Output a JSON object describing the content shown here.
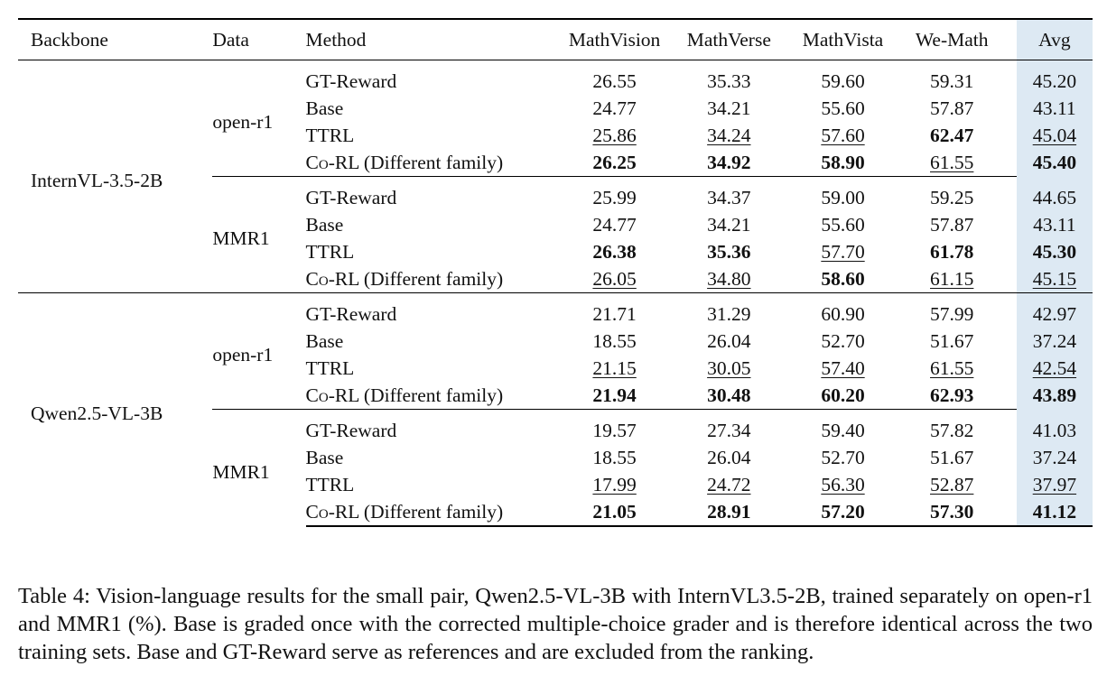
{
  "columns": {
    "backbone": "Backbone",
    "data": "Data",
    "method": "Method",
    "mathvision": "MathVision",
    "mathverse": "MathVerse",
    "mathvista": "MathVista",
    "wemath": "We-Math",
    "avg": "Avg"
  },
  "backbones": [
    {
      "name": "InternVL-3.5-2B",
      "groups": [
        {
          "data": "open-r1",
          "rows": [
            {
              "method": "GT-Reward",
              "vals": [
                "26.55",
                "35.33",
                "59.60",
                "59.31",
                "45.20"
              ],
              "style": [
                "",
                "",
                "",
                "",
                ""
              ]
            },
            {
              "method": "Base",
              "vals": [
                "24.77",
                "34.21",
                "55.60",
                "57.87",
                "43.11"
              ],
              "style": [
                "",
                "",
                "",
                "",
                ""
              ]
            },
            {
              "method": "TTRL",
              "vals": [
                "25.86",
                "34.24",
                "57.60",
                "62.47",
                "45.04"
              ],
              "style": [
                "u",
                "u",
                "u",
                "b",
                "u"
              ]
            },
            {
              "method": "Co-RL (Different family)",
              "vals": [
                "26.25",
                "34.92",
                "58.90",
                "61.55",
                "45.40"
              ],
              "style": [
                "b",
                "b",
                "b",
                "u",
                "b"
              ]
            }
          ]
        },
        {
          "data": "MMR1",
          "rows": [
            {
              "method": "GT-Reward",
              "vals": [
                "25.99",
                "34.37",
                "59.00",
                "59.25",
                "44.65"
              ],
              "style": [
                "",
                "",
                "",
                "",
                ""
              ]
            },
            {
              "method": "Base",
              "vals": [
                "24.77",
                "34.21",
                "55.60",
                "57.87",
                "43.11"
              ],
              "style": [
                "",
                "",
                "",
                "",
                ""
              ]
            },
            {
              "method": "TTRL",
              "vals": [
                "26.38",
                "35.36",
                "57.70",
                "61.78",
                "45.30"
              ],
              "style": [
                "b",
                "b",
                "u",
                "b",
                "b"
              ]
            },
            {
              "method": "Co-RL (Different family)",
              "vals": [
                "26.05",
                "34.80",
                "58.60",
                "61.15",
                "45.15"
              ],
              "style": [
                "u",
                "u",
                "b",
                "u",
                "u"
              ]
            }
          ]
        }
      ]
    },
    {
      "name": "Qwen2.5-VL-3B",
      "groups": [
        {
          "data": "open-r1",
          "rows": [
            {
              "method": "GT-Reward",
              "vals": [
                "21.71",
                "31.29",
                "60.90",
                "57.99",
                "42.97"
              ],
              "style": [
                "",
                "",
                "",
                "",
                ""
              ]
            },
            {
              "method": "Base",
              "vals": [
                "18.55",
                "26.04",
                "52.70",
                "51.67",
                "37.24"
              ],
              "style": [
                "",
                "",
                "",
                "",
                ""
              ]
            },
            {
              "method": "TTRL",
              "vals": [
                "21.15",
                "30.05",
                "57.40",
                "61.55",
                "42.54"
              ],
              "style": [
                "u",
                "u",
                "u",
                "u",
                "u"
              ]
            },
            {
              "method": "Co-RL (Different family)",
              "vals": [
                "21.94",
                "30.48",
                "60.20",
                "62.93",
                "43.89"
              ],
              "style": [
                "b",
                "b",
                "b",
                "b",
                "b"
              ]
            }
          ]
        },
        {
          "data": "MMR1",
          "rows": [
            {
              "method": "GT-Reward",
              "vals": [
                "19.57",
                "27.34",
                "59.40",
                "57.82",
                "41.03"
              ],
              "style": [
                "",
                "",
                "",
                "",
                ""
              ]
            },
            {
              "method": "Base",
              "vals": [
                "18.55",
                "26.04",
                "52.70",
                "51.67",
                "37.24"
              ],
              "style": [
                "",
                "",
                "",
                "",
                ""
              ]
            },
            {
              "method": "TTRL",
              "vals": [
                "17.99",
                "24.72",
                "56.30",
                "52.87",
                "37.97"
              ],
              "style": [
                "u",
                "u",
                "u",
                "u",
                "u"
              ]
            },
            {
              "method": "Co-RL (Different family)",
              "vals": [
                "21.05",
                "28.91",
                "57.20",
                "57.30",
                "41.12"
              ],
              "style": [
                "b",
                "b",
                "b",
                "b",
                "b"
              ]
            }
          ]
        }
      ]
    }
  ],
  "caption": "Table 4: Vision-language results for the small pair, Qwen2.5-VL-3B with InternVL3.5-2B, trained separately on open-r1 and MMR1 (%). Base is graded once with the corrected multiple-choice grader and is therefore identical across the two training sets. Base and GT-Reward serve as references and are excluded from the ranking."
}
